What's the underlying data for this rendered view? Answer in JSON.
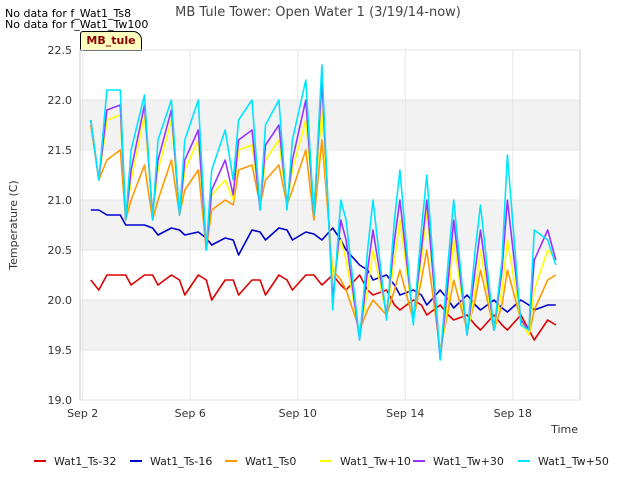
{
  "nodata_lines": [
    "No data for f_Wat1_Ts8",
    "No data for f_Wat1_Tw100"
  ],
  "badge": "MB_tule",
  "chart_data": {
    "type": "line",
    "title": "MB Tule Tower: Open Water 1 (3/19/14-now)",
    "xlabel": "Time",
    "ylabel": "Temperature (C)",
    "xlim": [
      1.9,
      20.5
    ],
    "ylim": [
      19.0,
      22.5
    ],
    "x_ticks": [
      2,
      6,
      10,
      14,
      18
    ],
    "x_tick_labels": [
      "Sep 2",
      "Sep 6",
      "Sep 10",
      "Sep 14",
      "Sep 18"
    ],
    "y_ticks": [
      19.0,
      19.5,
      20.0,
      20.5,
      21.0,
      21.5,
      22.0,
      22.5
    ],
    "y_tick_labels": [
      "19.0",
      "19.5",
      "20.0",
      "20.5",
      "21.0",
      "21.5",
      "22.0",
      "22.5"
    ],
    "grid": true,
    "legend_position": "bottom",
    "x": [
      2.3,
      2.6,
      2.9,
      3.4,
      3.6,
      3.8,
      4.3,
      4.6,
      4.8,
      5.3,
      5.6,
      5.8,
      6.3,
      6.6,
      6.8,
      7.3,
      7.6,
      7.8,
      8.3,
      8.6,
      8.8,
      9.3,
      9.6,
      9.8,
      10.3,
      10.6,
      10.9,
      11.3,
      11.6,
      11.8,
      12.3,
      12.6,
      12.8,
      13.3,
      13.6,
      13.8,
      14.3,
      14.6,
      14.8,
      15.3,
      15.6,
      15.8,
      16.3,
      16.6,
      16.8,
      17.3,
      17.6,
      17.8,
      18.3,
      18.6,
      18.8,
      19.3,
      19.6
    ],
    "series": [
      {
        "name": "Wat1_Ts-32",
        "color": "#dd0000",
        "values": [
          20.2,
          20.1,
          20.25,
          20.25,
          20.25,
          20.15,
          20.25,
          20.25,
          20.15,
          20.25,
          20.2,
          20.05,
          20.25,
          20.2,
          20.0,
          20.2,
          20.2,
          20.05,
          20.2,
          20.2,
          20.05,
          20.25,
          20.2,
          20.1,
          20.25,
          20.25,
          20.15,
          20.25,
          20.15,
          20.1,
          20.25,
          20.1,
          20.05,
          20.1,
          19.95,
          19.9,
          20.0,
          19.95,
          19.85,
          19.95,
          19.85,
          19.8,
          19.85,
          19.75,
          19.7,
          19.85,
          19.75,
          19.7,
          19.85,
          19.7,
          19.6,
          19.8,
          19.75
        ]
      },
      {
        "name": "Wat1_Ts-16",
        "color": "#0000cc",
        "values": [
          20.9,
          20.9,
          20.85,
          20.85,
          20.75,
          20.75,
          20.75,
          20.72,
          20.65,
          20.72,
          20.7,
          20.65,
          20.68,
          20.62,
          20.55,
          20.62,
          20.6,
          20.45,
          20.7,
          20.68,
          20.6,
          20.72,
          20.7,
          20.6,
          20.68,
          20.66,
          20.6,
          20.72,
          20.6,
          20.5,
          20.35,
          20.3,
          20.2,
          20.25,
          20.15,
          20.05,
          20.1,
          20.05,
          19.95,
          20.1,
          20.0,
          19.92,
          20.05,
          19.95,
          19.9,
          20.0,
          19.92,
          19.88,
          20.0,
          19.95,
          19.9,
          19.95,
          19.95
        ]
      },
      {
        "name": "Wat1_Ts0",
        "color": "#ff9900",
        "values": [
          21.75,
          21.2,
          21.4,
          21.5,
          20.8,
          21.0,
          21.35,
          20.8,
          21.0,
          21.4,
          20.85,
          21.1,
          21.3,
          20.5,
          20.9,
          21.0,
          20.95,
          21.3,
          21.35,
          20.95,
          21.2,
          21.35,
          20.95,
          21.1,
          21.5,
          20.8,
          21.6,
          20.3,
          20.2,
          20.1,
          19.7,
          19.9,
          20.0,
          19.85,
          20.1,
          20.3,
          19.8,
          20.2,
          20.5,
          19.5,
          19.9,
          20.2,
          19.7,
          20.0,
          20.3,
          19.7,
          19.95,
          20.3,
          19.8,
          19.65,
          19.9,
          20.2,
          20.25
        ]
      },
      {
        "name": "Wat1_Tw+10",
        "color": "#ffff00",
        "values": [
          21.8,
          21.2,
          21.8,
          21.85,
          20.8,
          21.2,
          21.85,
          20.85,
          21.3,
          21.8,
          20.85,
          21.3,
          21.6,
          20.5,
          21.05,
          21.2,
          21.0,
          21.5,
          21.55,
          20.95,
          21.4,
          21.6,
          20.95,
          21.3,
          21.8,
          20.9,
          21.9,
          20.2,
          20.6,
          20.4,
          19.65,
          20.1,
          20.5,
          19.85,
          20.4,
          20.8,
          19.8,
          20.4,
          20.9,
          19.45,
          20.0,
          20.6,
          19.65,
          20.1,
          20.5,
          19.7,
          20.1,
          20.6,
          19.8,
          19.65,
          20.1,
          20.5,
          20.4
        ]
      },
      {
        "name": "Wat1_Tw+30",
        "color": "#9933ff",
        "values": [
          21.8,
          21.2,
          21.9,
          21.95,
          20.8,
          21.3,
          21.95,
          20.85,
          21.4,
          21.9,
          20.85,
          21.4,
          21.7,
          20.5,
          21.1,
          21.4,
          21.05,
          21.6,
          21.7,
          20.9,
          21.55,
          21.75,
          20.95,
          21.4,
          22.0,
          20.85,
          22.2,
          20.0,
          20.8,
          20.6,
          19.6,
          20.3,
          20.7,
          19.85,
          20.6,
          21.0,
          19.8,
          20.5,
          21.0,
          19.4,
          20.2,
          20.8,
          19.65,
          20.3,
          20.7,
          19.7,
          20.3,
          21.0,
          19.8,
          19.7,
          20.4,
          20.7,
          20.4
        ]
      },
      {
        "name": "Wat1_Tw+50",
        "color": "#00e5ff",
        "values": [
          21.8,
          21.2,
          22.1,
          22.1,
          20.8,
          21.5,
          22.05,
          20.8,
          21.6,
          22.0,
          20.85,
          21.6,
          22.0,
          20.5,
          21.3,
          21.7,
          21.2,
          21.8,
          22.0,
          20.9,
          21.75,
          22.0,
          20.9,
          21.6,
          22.2,
          20.85,
          22.35,
          19.9,
          21.0,
          20.8,
          19.6,
          20.5,
          21.0,
          19.8,
          20.8,
          21.3,
          19.75,
          20.7,
          21.25,
          19.4,
          20.4,
          21.0,
          19.65,
          20.5,
          20.95,
          19.7,
          20.4,
          21.45,
          19.75,
          19.7,
          20.7,
          20.6,
          20.35
        ]
      }
    ]
  }
}
